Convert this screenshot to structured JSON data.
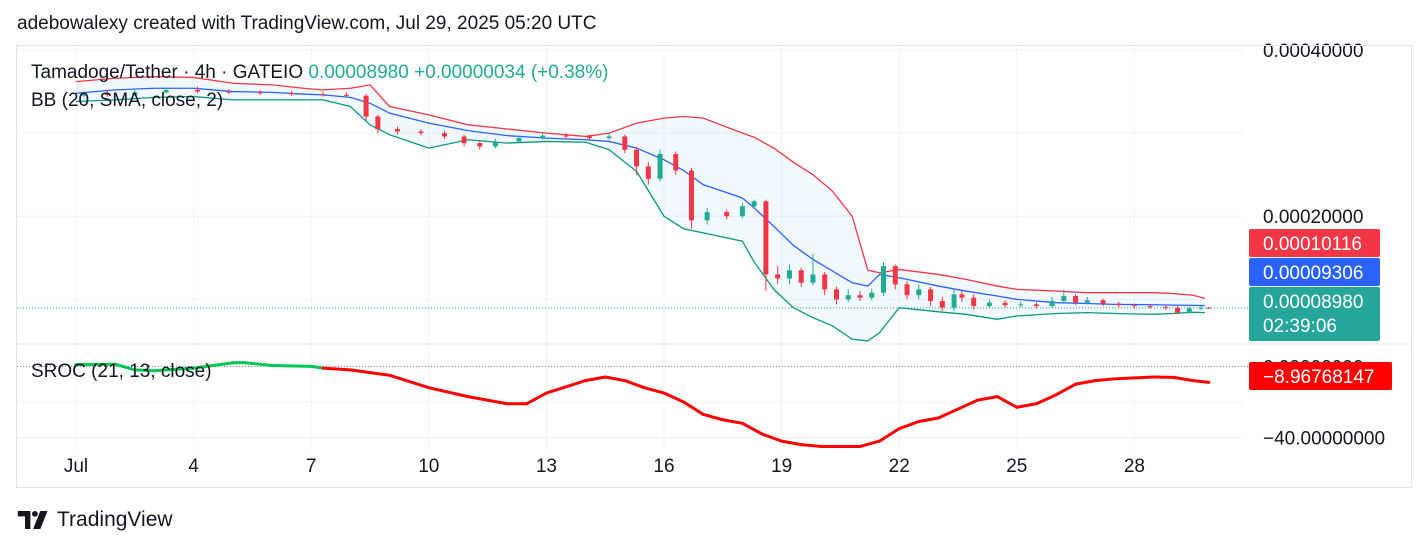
{
  "header": {
    "text": "adebowalexy created with TradingView.com, Jul 29, 2025 05:20 UTC"
  },
  "legend": {
    "symbol": "Tamadoge/Tether · 4h · GATEIO",
    "last": "0.00008980",
    "change": "+0.00000034 (+0.38%)",
    "bb": "BB (20, SMA, close, 2)",
    "sroc": "SROC (21, 13, close)"
  },
  "footer": {
    "brand": "TradingView"
  },
  "colors": {
    "up": "#22ab94",
    "down": "#f23645",
    "basis": "#2962ff",
    "upper": "#f23645",
    "lower": "#089981",
    "fill": "#2196f3",
    "sroc_up": "#00c853",
    "sroc_down": "#ff0000"
  },
  "chart_data": [
    {
      "type": "candlestick",
      "title": "Tamadoge/Tether · 4h · GATEIO",
      "x_ticks": [
        "Jul",
        "4",
        "7",
        "10",
        "13",
        "16",
        "19",
        "22",
        "25",
        "28"
      ],
      "y_ticks": [
        "0.00040000",
        "0.00020000"
      ],
      "ylim": [
        4.75e-05,
        0.0004
      ],
      "price_labels": [
        {
          "value": 0.00010116,
          "text": "0.00010116",
          "color": "#f23645"
        },
        {
          "value": 9.306e-05,
          "text": "0.00009306",
          "color": "#2962ff"
        },
        {
          "value": 8.98e-05,
          "text": "0.00008980",
          "sub": "02:39:06",
          "color": "#26a69a"
        }
      ],
      "bollinger": {
        "name": "BB (20, SMA, close, 2)",
        "x": [
          0,
          1,
          2,
          3,
          4,
          5,
          5.8,
          6.3,
          7,
          7.5,
          8,
          9,
          10,
          11,
          12,
          13,
          13.6,
          14.3,
          15,
          15.5,
          16,
          17,
          17.3,
          17.8,
          18.3,
          18.8,
          19.3,
          19.8,
          20.2,
          20.5,
          21,
          22,
          22.7,
          23.5,
          24,
          25,
          25.8,
          26.5,
          27.5,
          28,
          28.5,
          28.8
        ],
        "basis": [
          0.000348,
          0.000352,
          0.000354,
          0.000354,
          0.00035,
          0.000349,
          0.000347,
          0.000346,
          0.000343,
          0.000336,
          0.000324,
          0.000312,
          0.000303,
          0.000297,
          0.000294,
          0.000292,
          0.00029,
          0.000282,
          0.000268,
          0.000255,
          0.000238,
          0.000222,
          0.00021,
          0.000188,
          0.000165,
          0.000148,
          0.000134,
          0.00012,
          0.000116,
          0.00013,
          0.000126,
          0.000116,
          0.00011,
          0.000104,
          0.0001,
          9.6e-05,
          9.5e-05,
          9.4e-05,
          9.35e-05,
          9.31e-05,
          9.28e-05,
          9.26e-05
        ],
        "upper": [
          0.000362,
          0.000366,
          0.000368,
          0.000367,
          0.00036,
          0.000358,
          0.000354,
          0.000352,
          0.000354,
          0.000358,
          0.000332,
          0.000322,
          0.00031,
          0.000305,
          0.0003,
          0.000296,
          0.0003,
          0.000312,
          0.000318,
          0.00032,
          0.000318,
          0.0003,
          0.000295,
          0.000282,
          0.000265,
          0.00025,
          0.00023,
          0.0002,
          0.000135,
          0.000132,
          0.000136,
          0.00013,
          0.000124,
          0.000116,
          0.000112,
          0.00011,
          0.000108,
          0.000108,
          0.000108,
          0.000107,
          0.000105,
          0.00010116
        ],
        "lower": [
          0.000338,
          0.00034,
          0.000343,
          0.000344,
          0.00034,
          0.00034,
          0.00034,
          0.00034,
          0.000332,
          0.00031,
          0.000298,
          0.000282,
          0.000292,
          0.000288,
          0.00029,
          0.000289,
          0.00028,
          0.000254,
          0.0002,
          0.000185,
          0.00018,
          0.00017,
          0.000145,
          0.000112,
          9e-05,
          7.8e-05,
          6.8e-05,
          5.2e-05,
          5e-05,
          6e-05,
          9e-05,
          8.5e-05,
          8.2e-05,
          7.6e-05,
          8e-05,
          8.3e-05,
          8.4e-05,
          8.3e-05,
          8.2e-05,
          8.3e-05,
          8.45e-05,
          8.4e-05
        ]
      },
      "candles": [
        {
          "x": 0.2,
          "o": 0.000345,
          "c": 0.000348,
          "h": 0.00035,
          "l": 0.000343
        },
        {
          "x": 0.8,
          "o": 0.000348,
          "c": 0.000346,
          "h": 0.000351,
          "l": 0.000344
        },
        {
          "x": 1.5,
          "o": 0.000346,
          "c": 0.000349,
          "h": 0.000352,
          "l": 0.000345
        },
        {
          "x": 2.3,
          "o": 0.000349,
          "c": 0.000352,
          "h": 0.000355,
          "l": 0.000348
        },
        {
          "x": 3.1,
          "o": 0.000352,
          "c": 0.00035,
          "h": 0.000356,
          "l": 0.000348
        },
        {
          "x": 3.9,
          "o": 0.00035,
          "c": 0.000349,
          "h": 0.000353,
          "l": 0.000347
        },
        {
          "x": 4.7,
          "o": 0.000349,
          "c": 0.000348,
          "h": 0.000352,
          "l": 0.000346
        },
        {
          "x": 5.5,
          "o": 0.000348,
          "c": 0.000347,
          "h": 0.000351,
          "l": 0.000345
        },
        {
          "x": 6.3,
          "o": 0.000347,
          "c": 0.000346,
          "h": 0.00035,
          "l": 0.000344
        },
        {
          "x": 6.9,
          "o": 0.000346,
          "c": 0.000345,
          "h": 0.000349,
          "l": 0.000343
        },
        {
          "x": 7.4,
          "o": 0.000345,
          "c": 0.00032,
          "h": 0.000347,
          "l": 0.000315
        },
        {
          "x": 7.7,
          "o": 0.00032,
          "c": 0.000305,
          "h": 0.000322,
          "l": 0.0003
        },
        {
          "x": 8.2,
          "o": 0.000305,
          "c": 0.000302,
          "h": 0.000308,
          "l": 0.000298
        },
        {
          "x": 8.8,
          "o": 0.000302,
          "c": 0.0003,
          "h": 0.000305,
          "l": 0.000297
        },
        {
          "x": 9.4,
          "o": 0.0003,
          "c": 0.000296,
          "h": 0.000303,
          "l": 0.000293
        },
        {
          "x": 9.9,
          "o": 0.000296,
          "c": 0.000288,
          "h": 0.000298,
          "l": 0.000284
        },
        {
          "x": 10.3,
          "o": 0.000288,
          "c": 0.000284,
          "h": 0.00029,
          "l": 0.00028
        },
        {
          "x": 10.7,
          "o": 0.000284,
          "c": 0.00029,
          "h": 0.000293,
          "l": 0.000282
        },
        {
          "x": 11.3,
          "o": 0.00029,
          "c": 0.000294,
          "h": 0.000297,
          "l": 0.000288
        },
        {
          "x": 11.9,
          "o": 0.000294,
          "c": 0.000297,
          "h": 0.0003,
          "l": 0.000292
        },
        {
          "x": 12.5,
          "o": 0.000297,
          "c": 0.000296,
          "h": 0.0003,
          "l": 0.000293
        },
        {
          "x": 13.1,
          "o": 0.000296,
          "c": 0.000294,
          "h": 0.000298,
          "l": 0.000291
        },
        {
          "x": 13.6,
          "o": 0.000294,
          "c": 0.000296,
          "h": 0.0003,
          "l": 0.000292
        },
        {
          "x": 14.0,
          "o": 0.000296,
          "c": 0.00028,
          "h": 0.000298,
          "l": 0.000276
        },
        {
          "x": 14.3,
          "o": 0.00028,
          "c": 0.00026,
          "h": 0.000283,
          "l": 0.00025
        },
        {
          "x": 14.6,
          "o": 0.00026,
          "c": 0.000245,
          "h": 0.000265,
          "l": 0.000238
        },
        {
          "x": 14.9,
          "o": 0.000245,
          "c": 0.000275,
          "h": 0.00028,
          "l": 0.000242
        },
        {
          "x": 15.3,
          "o": 0.000275,
          "c": 0.000255,
          "h": 0.000278,
          "l": 0.00025
        },
        {
          "x": 15.7,
          "o": 0.000255,
          "c": 0.000195,
          "h": 0.000258,
          "l": 0.000185
        },
        {
          "x": 16.1,
          "o": 0.000195,
          "c": 0.000205,
          "h": 0.00021,
          "l": 0.00019
        },
        {
          "x": 16.6,
          "o": 0.000205,
          "c": 0.0002,
          "h": 0.000208,
          "l": 0.000196
        },
        {
          "x": 17.0,
          "o": 0.0002,
          "c": 0.000212,
          "h": 0.000216,
          "l": 0.000198
        },
        {
          "x": 17.3,
          "o": 0.000212,
          "c": 0.000218,
          "h": 0.00022,
          "l": 0.000209
        },
        {
          "x": 17.6,
          "o": 0.000218,
          "c": 0.00013,
          "h": 0.00022,
          "l": 0.00011
        },
        {
          "x": 17.9,
          "o": 0.00013,
          "c": 0.000125,
          "h": 0.00014,
          "l": 0.000118
        },
        {
          "x": 18.2,
          "o": 0.000125,
          "c": 0.000135,
          "h": 0.000142,
          "l": 0.000118
        },
        {
          "x": 18.5,
          "o": 0.000135,
          "c": 0.00012,
          "h": 0.000138,
          "l": 0.000115
        },
        {
          "x": 18.8,
          "o": 0.00012,
          "c": 0.00013,
          "h": 0.000155,
          "l": 0.000117
        },
        {
          "x": 19.1,
          "o": 0.00013,
          "c": 0.000112,
          "h": 0.000133,
          "l": 0.000105
        },
        {
          "x": 19.4,
          "o": 0.000112,
          "c": 0.0001,
          "h": 0.000115,
          "l": 9.4e-05
        },
        {
          "x": 19.7,
          "o": 0.0001,
          "c": 0.000105,
          "h": 0.000112,
          "l": 9.7e-05
        },
        {
          "x": 20.0,
          "o": 0.000105,
          "c": 0.000102,
          "h": 0.00011,
          "l": 9.8e-05
        },
        {
          "x": 20.3,
          "o": 0.000102,
          "c": 0.000108,
          "h": 0.000113,
          "l": 9.9e-05
        },
        {
          "x": 20.6,
          "o": 0.000108,
          "c": 0.00014,
          "h": 0.000145,
          "l": 0.000104
        },
        {
          "x": 20.9,
          "o": 0.00014,
          "c": 0.000118,
          "h": 0.000142,
          "l": 0.000112
        },
        {
          "x": 21.2,
          "o": 0.000118,
          "c": 0.000105,
          "h": 0.000122,
          "l": 0.0001
        },
        {
          "x": 21.5,
          "o": 0.000105,
          "c": 0.000112,
          "h": 0.000118,
          "l": 0.0001
        },
        {
          "x": 21.8,
          "o": 0.000112,
          "c": 9.8e-05,
          "h": 0.000115,
          "l": 9.2e-05
        },
        {
          "x": 22.1,
          "o": 9.8e-05,
          "c": 9e-05,
          "h": 0.000103,
          "l": 8.6e-05
        },
        {
          "x": 22.4,
          "o": 9e-05,
          "c": 0.000106,
          "h": 0.000112,
          "l": 8.6e-05
        },
        {
          "x": 22.6,
          "o": 0.000106,
          "c": 0.000102,
          "h": 0.00011,
          "l": 9.7e-05
        },
        {
          "x": 22.9,
          "o": 0.000102,
          "c": 9.2e-05,
          "h": 0.000106,
          "l": 8.8e-05
        },
        {
          "x": 23.3,
          "o": 9.2e-05,
          "c": 9.6e-05,
          "h": 0.0001,
          "l": 8.9e-05
        },
        {
          "x": 23.7,
          "o": 9.6e-05,
          "c": 9.3e-05,
          "h": 9.9e-05,
          "l": 9e-05
        },
        {
          "x": 24.1,
          "o": 9.3e-05,
          "c": 9.4e-05,
          "h": 9.7e-05,
          "l": 9e-05
        },
        {
          "x": 24.5,
          "o": 9.4e-05,
          "c": 9.2e-05,
          "h": 9.7e-05,
          "l": 8.9e-05
        },
        {
          "x": 24.9,
          "o": 9.2e-05,
          "c": 9.8e-05,
          "h": 0.000103,
          "l": 9e-05
        },
        {
          "x": 25.2,
          "o": 9.8e-05,
          "c": 0.000104,
          "h": 0.000112,
          "l": 9.5e-05
        },
        {
          "x": 25.5,
          "o": 0.000104,
          "c": 9.6e-05,
          "h": 0.000106,
          "l": 9.3e-05
        },
        {
          "x": 25.8,
          "o": 9.6e-05,
          "c": 9.9e-05,
          "h": 0.000103,
          "l": 9.4e-05
        },
        {
          "x": 26.2,
          "o": 9.9e-05,
          "c": 9.5e-05,
          "h": 0.000101,
          "l": 9.2e-05
        },
        {
          "x": 26.6,
          "o": 9.5e-05,
          "c": 9.3e-05,
          "h": 9.7e-05,
          "l": 9e-05
        },
        {
          "x": 27.0,
          "o": 9.3e-05,
          "c": 9.2e-05,
          "h": 9.5e-05,
          "l": 8.9e-05
        },
        {
          "x": 27.4,
          "o": 9.2e-05,
          "c": 9.1e-05,
          "h": 9.4e-05,
          "l": 8.8e-05
        },
        {
          "x": 27.8,
          "o": 9.1e-05,
          "c": 9e-05,
          "h": 9.3e-05,
          "l": 8.7e-05
        },
        {
          "x": 28.1,
          "o": 9e-05,
          "c": 8.4e-05,
          "h": 9.2e-05,
          "l": 8.2e-05
        },
        {
          "x": 28.4,
          "o": 8.4e-05,
          "c": 8.9e-05,
          "h": 9.1e-05,
          "l": 8.3e-05
        },
        {
          "x": 28.7,
          "o": 8.9e-05,
          "c": 9e-05,
          "h": 9.2e-05,
          "l": 8.7e-05
        },
        {
          "x": 28.9,
          "o": 9e-05,
          "c": 8.98e-05,
          "h": 9.1e-05,
          "l": 8.8e-05
        }
      ]
    },
    {
      "type": "line",
      "title": "SROC (21, 13, close)",
      "y_ticks": [
        "0.00000000",
        "−40.00000000"
      ],
      "ylim": [
        -47,
        12
      ],
      "last_label": {
        "value": -8.96768147,
        "text": "−8.96768147",
        "color": "#ff0000"
      },
      "series": [
        {
          "x": [
            0,
            1,
            1.5,
            2,
            3,
            3.5,
            4,
            4.3,
            5,
            6,
            6.3,
            7,
            8,
            9,
            10,
            11,
            11.5,
            12,
            13,
            13.5,
            14,
            14.5,
            15,
            15.5,
            16,
            16.5,
            17,
            17.5,
            18,
            18.5,
            19,
            19.5,
            20,
            20.5,
            21,
            21.5,
            22,
            22.5,
            23,
            23.5,
            24,
            24.5,
            25,
            25.5,
            26,
            26.5,
            27,
            27.5,
            28,
            28.5,
            28.9
          ],
          "y": [
            1.0,
            1.2,
            -2.0,
            -2.5,
            -1.0,
            0.5,
            2.0,
            2.1,
            0.5,
            0,
            -1.0,
            -2.0,
            -5.0,
            -12.0,
            -17.0,
            -21.0,
            -21.0,
            -15.0,
            -8.0,
            -6.0,
            -8.0,
            -12.0,
            -15.0,
            -20.0,
            -27.0,
            -30.0,
            -32.0,
            -38.0,
            -42.0,
            -44.0,
            -45.0,
            -45.0,
            -45.0,
            -42.0,
            -35.0,
            -31.0,
            -29.0,
            -24.0,
            -19.0,
            -17.0,
            -23.0,
            -21.0,
            -16.0,
            -10.0,
            -8.0,
            -7.0,
            -6.5,
            -6.0,
            -6.2,
            -8.0,
            -9.0
          ]
        }
      ]
    }
  ]
}
